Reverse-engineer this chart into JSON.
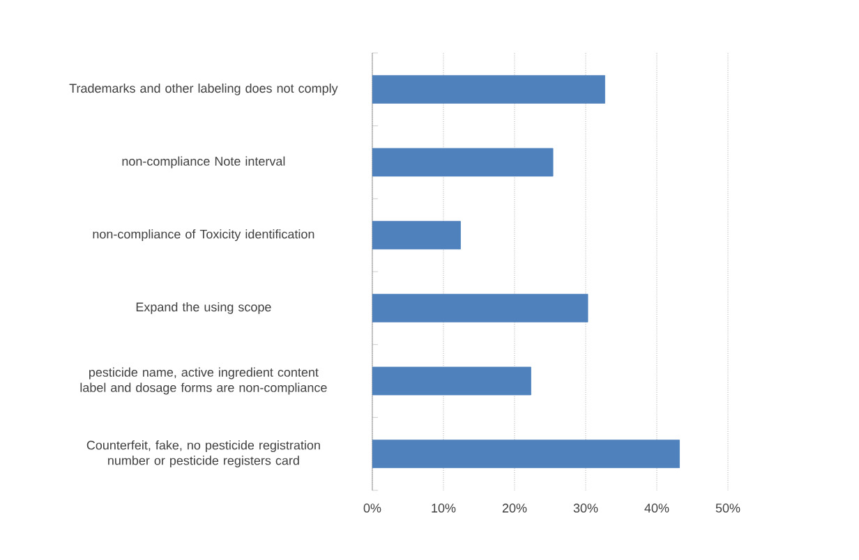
{
  "chart_data": {
    "type": "bar",
    "orientation": "horizontal",
    "categories": [
      "Trademarks and other labeling does not comply",
      "non-compliance Note interval",
      "non-compliance of Toxicity identification",
      "Expand the using scope",
      "pesticide name, active ingredient content label and dosage forms are non-compliance",
      "Counterfeit, fake, no pesticide registration number or pesticide registers card"
    ],
    "values": [
      32.7,
      25.4,
      12.4,
      30.3,
      22.3,
      43.2
    ],
    "color": "#4f81bd",
    "xlim": [
      0,
      50
    ],
    "xticks": [
      {
        "value": 0,
        "label": "0%"
      },
      {
        "value": 10,
        "label": "10%"
      },
      {
        "value": 20,
        "label": "20%"
      },
      {
        "value": 30,
        "label": "30%"
      },
      {
        "value": 40,
        "label": "40%"
      },
      {
        "value": 50,
        "label": "50%"
      }
    ],
    "grid": "x"
  }
}
